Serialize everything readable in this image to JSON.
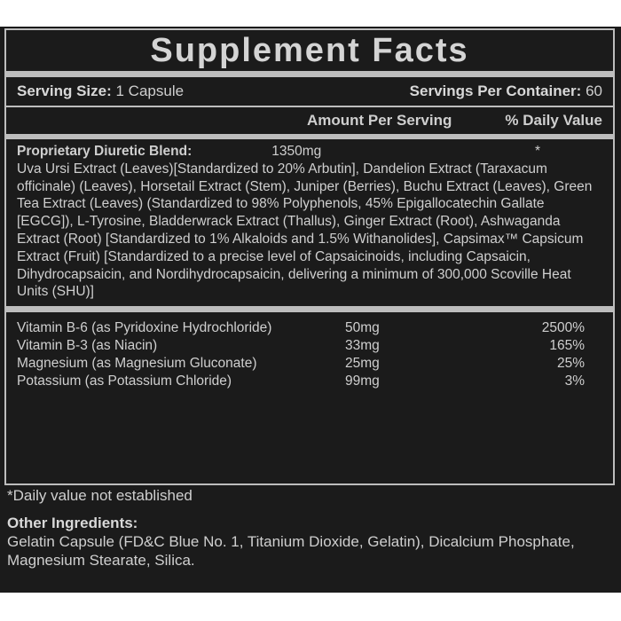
{
  "title": "Supplement Facts",
  "serving": {
    "size_label": "Serving Size:",
    "size_value": "1 Capsule",
    "per_container_label": "Servings Per Container:",
    "per_container_value": "60"
  },
  "header": {
    "amount": "Amount Per Serving",
    "daily_value": "% Daily Value"
  },
  "blend": {
    "name": "Proprietary Diuretic Blend:",
    "amount": "1350mg",
    "daily_value": "*",
    "ingredients": "Uva Ursi Extract (Leaves)[Standardized to 20% Arbutin], Dandelion Extract (Taraxacum officinale) (Leaves), Horsetail Extract (Stem), Juniper (Berries), Buchu Extract (Leaves), Green Tea Extract (Leaves) (Standardized to 98% Polyphenols, 45% Epigallocatechin Gallate [EGCG]), L-Tyrosine, Bladderwrack Extract (Thallus), Ginger Extract (Root), Ashwaganda Extract (Root) [Standardized to 1% Alkaloids and 1.5% Withanolides], Capsimax™ Capsicum Extract (Fruit) [Standardized to a precise level of Capsaicinoids, including Capsaicin, Dihydrocapsaicin, and Nordihydrocapsaicin, delivering a minimum of 300,000 Scoville Heat Units (SHU)]"
  },
  "nutrients": [
    [
      "Vitamin B-6 (as Pyridoxine Hydrochloride)",
      "50mg",
      "2500%"
    ],
    [
      "Vitamin B-3 (as Niacin)",
      "33mg",
      "165%"
    ],
    [
      "Magnesium (as Magnesium Gluconate)",
      "25mg",
      "25%"
    ],
    [
      "Potassium (as Potassium Chloride)",
      "99mg",
      "3%"
    ]
  ],
  "footnote": "*Daily value not established",
  "other": {
    "label": "Other Ingredients:",
    "text": "Gelatin Capsule (FD&C Blue No. 1, Titanium Dioxide, Gelatin), Dicalcium Phosphate, Magnesium Stearate, Silica."
  }
}
